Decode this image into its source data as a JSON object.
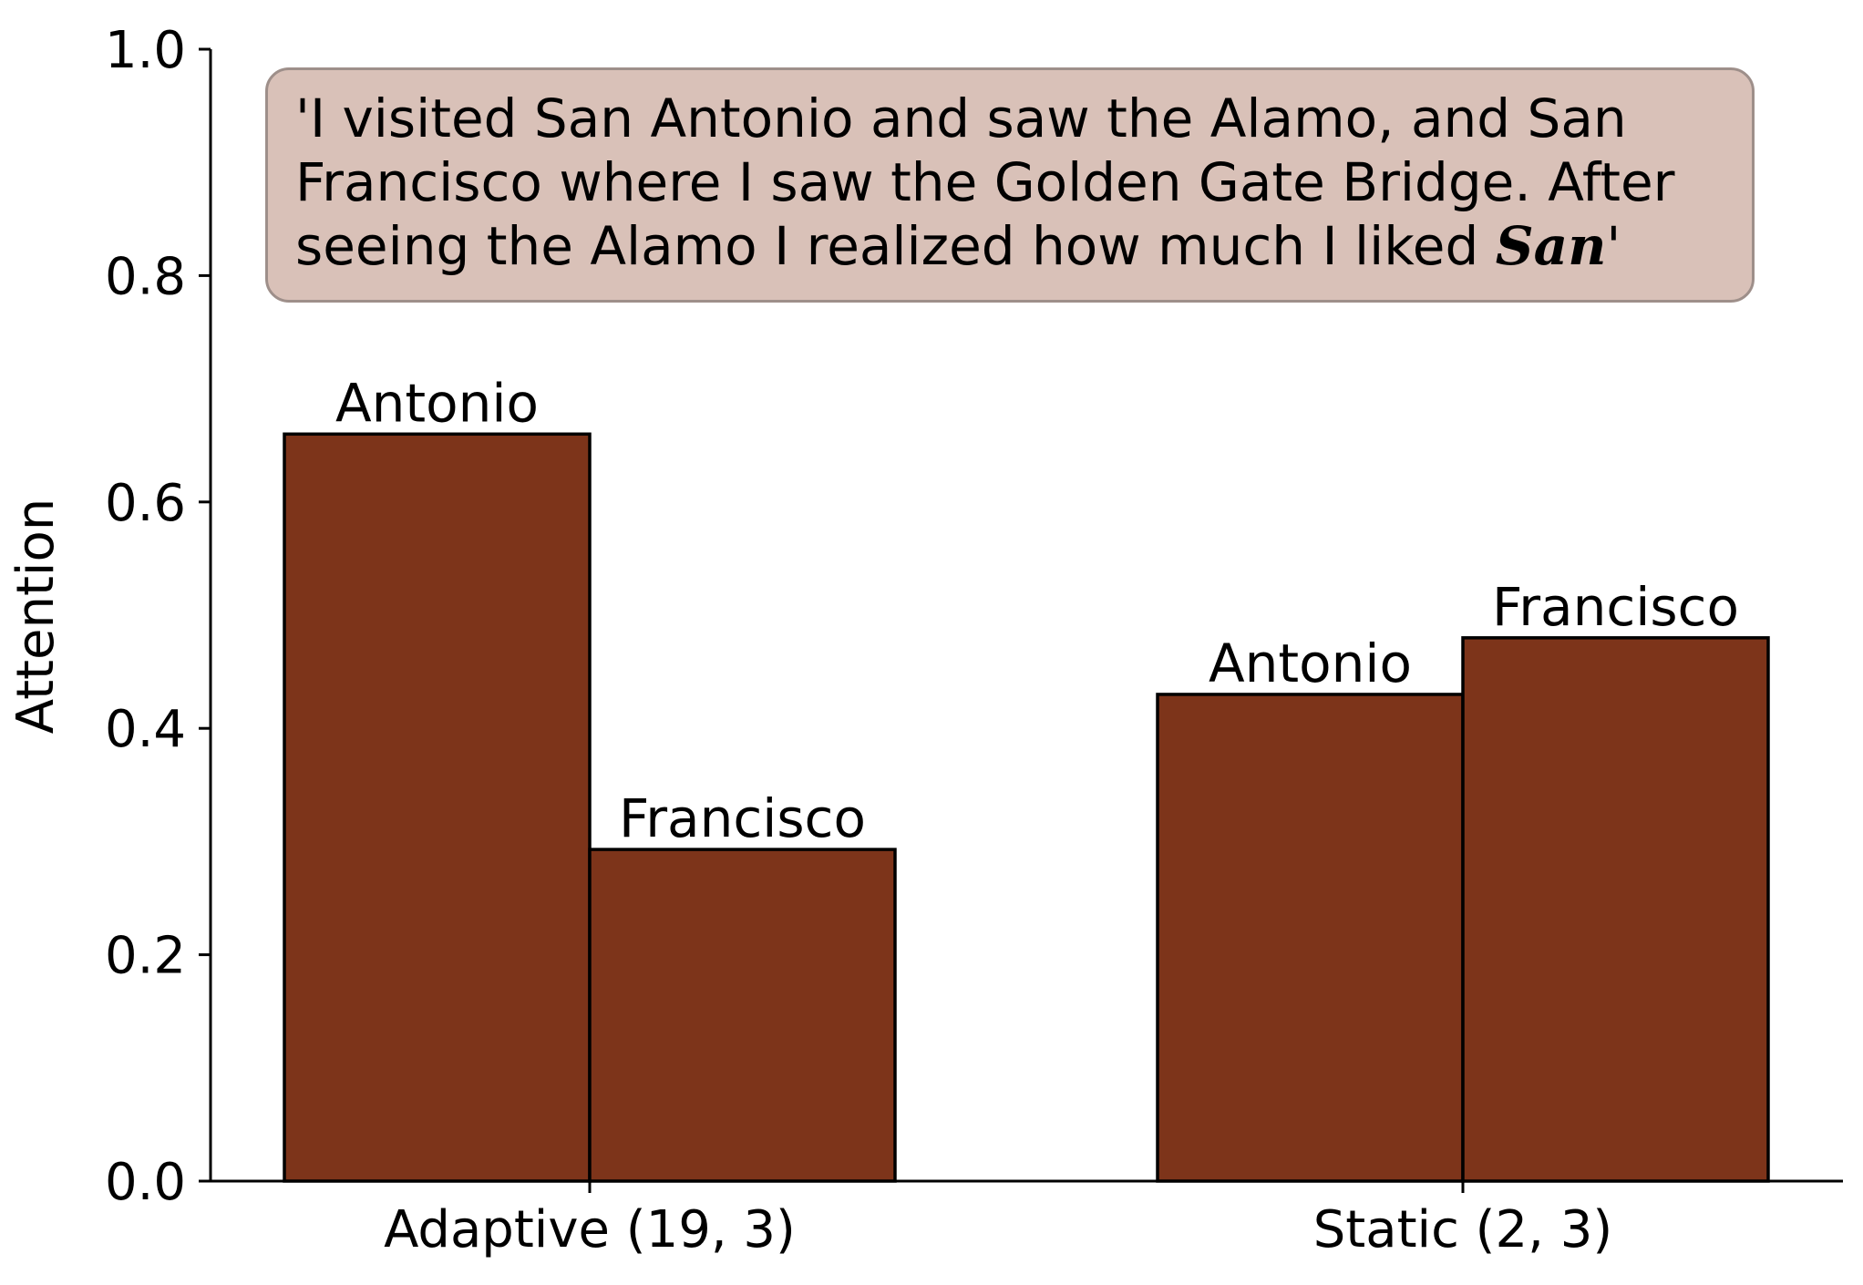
{
  "chart_data": {
    "type": "bar",
    "title": "",
    "xlabel": "",
    "ylabel": "Attention",
    "ylim": [
      0,
      1.0
    ],
    "yticks": [
      "0.0",
      "0.2",
      "0.4",
      "0.6",
      "0.8",
      "1.0"
    ],
    "categories": [
      "Adaptive (19, 3)",
      "Static (2, 3)"
    ],
    "series": [
      {
        "name": "Antonio",
        "values": [
          0.66,
          0.43
        ]
      },
      {
        "name": "Francisco",
        "values": [
          0.293,
          0.48
        ]
      }
    ],
    "bar_color": "#7d341a",
    "bar_edge_color": "#000000",
    "grid": false,
    "legend": "none",
    "annotation": {
      "text_before": "'I visited San Antonio and saw the Alamo, and San Francisco where I saw the Golden Gate Bridge. After seeing the Alamo I realized how much I liked ",
      "emphasis": "San",
      "text_after": "'",
      "box_color": "#d9c1b8"
    }
  }
}
